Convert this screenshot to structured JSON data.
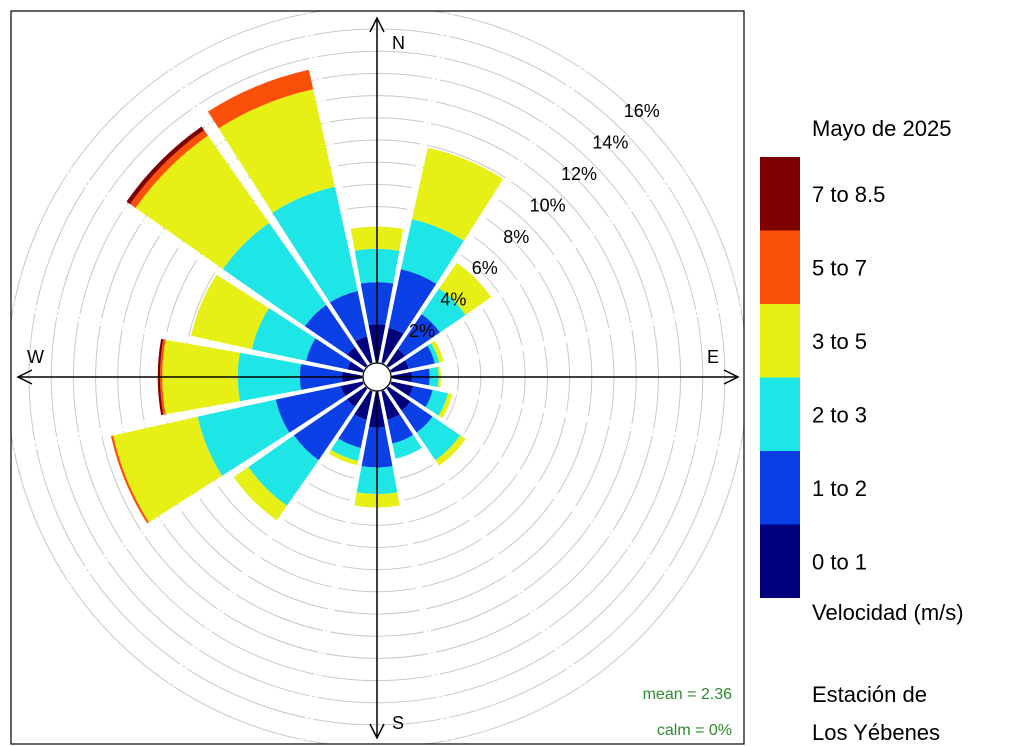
{
  "chart_data": {
    "type": "windrose",
    "directions": [
      "N",
      "NNE",
      "NE",
      "ENE",
      "E",
      "ESE",
      "SE",
      "SSE",
      "S",
      "SSW",
      "SW",
      "WSW",
      "W",
      "WNW",
      "NW",
      "NNW"
    ],
    "direction_angles_deg": [
      0,
      22.5,
      45,
      67.5,
      90,
      112.5,
      135,
      157.5,
      180,
      202.5,
      225,
      247.5,
      270,
      292.5,
      315,
      337.5
    ],
    "cardinal_labels": {
      "N": "N",
      "E": "E",
      "S": "S",
      "W": "W"
    },
    "radial_unit": "%",
    "radial_ticks": [
      2,
      4,
      6,
      8,
      10,
      12,
      14,
      16
    ],
    "radial_tick_labels": [
      "2%",
      "4%",
      "6%",
      "8%",
      "10%",
      "12%",
      "14%",
      "16%"
    ],
    "radial_max": 16,
    "speed_bins": [
      "0 to 1",
      "1 to 2",
      "2 to 3",
      "3 to 5",
      "5 to 7",
      "7 to 8.5"
    ],
    "bin_colors": [
      "#00007f",
      "#0a3fe6",
      "#1ee6e6",
      "#e6f014",
      "#fa500a",
      "#7f0000"
    ],
    "cumulative_percent": [
      [
        1.7,
        3.6,
        5.1,
        6.1,
        6.1,
        6.1
      ],
      [
        1.6,
        4.3,
        6.6,
        9.9,
        9.9,
        9.9
      ],
      [
        0.9,
        2.8,
        4.2,
        5.6,
        5.6,
        5.6
      ],
      [
        0.8,
        2.0,
        2.2,
        2.4,
        2.4,
        2.4
      ],
      [
        0.9,
        1.7,
        2.1,
        2.2,
        2.2,
        2.2
      ],
      [
        1.0,
        1.9,
        2.6,
        2.8,
        2.8,
        2.8
      ],
      [
        1.2,
        2.4,
        3.9,
        4.2,
        4.2,
        4.2
      ],
      [
        1.3,
        2.4,
        3.1,
        3.1,
        3.1,
        3.1
      ],
      [
        1.6,
        3.4,
        4.6,
        5.2,
        5.2,
        5.2
      ],
      [
        1.3,
        2.6,
        3.2,
        3.4,
        3.4,
        3.4
      ],
      [
        1.0,
        3.9,
        6.4,
        7.2,
        7.2,
        7.2
      ],
      [
        1.0,
        4.0,
        7.6,
        11.5,
        11.6,
        11.6
      ],
      [
        0.9,
        2.8,
        5.6,
        9.0,
        9.1,
        9.2
      ],
      [
        0.7,
        2.6,
        5.1,
        7.9,
        7.9,
        7.9
      ],
      [
        1.0,
        3.3,
        7.8,
        12.6,
        12.9,
        13.1
      ],
      [
        1.2,
        3.3,
        8.1,
        12.6,
        13.5,
        13.5
      ]
    ],
    "legend": {
      "title": "Mayo de 2025",
      "entries": [
        "7 to 8.5",
        "5 to 7",
        "3 to 5",
        "2 to 3",
        "1 to 2",
        "0 to 1"
      ],
      "entry_colors": [
        "#7f0000",
        "#fa500a",
        "#e6f014",
        "#1ee6e6",
        "#0a3fe6",
        "#00007f"
      ],
      "xlabel": "Velocidad (m/s)",
      "subtitle_line1": "Estación de",
      "subtitle_line2": "Los Yébenes"
    },
    "stats": {
      "mean": "mean = 2.36",
      "calm": "calm = 0%"
    },
    "colors": {
      "grid": "#c8c8c8",
      "axis": "#000000",
      "stats_text": "#2e8b2e"
    }
  }
}
